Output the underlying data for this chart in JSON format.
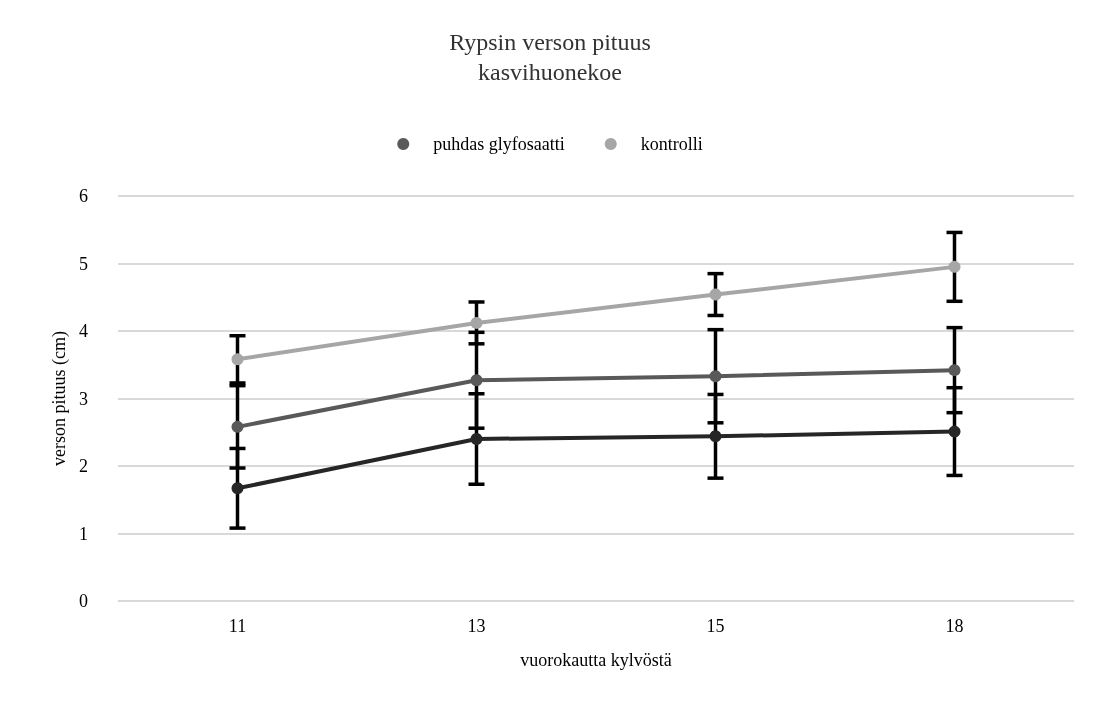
{
  "chart_data": {
    "type": "line",
    "title": "Rypsin verson pituus\nkasvihuonekoe",
    "xlabel": "vuorokautta kylvöstä",
    "ylabel": "verson pituus (cm)",
    "categories": [
      "11",
      "13",
      "15",
      "18"
    ],
    "series": [
      {
        "color": "#262626",
        "values": [
          1.67,
          2.4,
          2.44,
          2.51
        ],
        "errors": [
          0.59,
          0.67,
          0.62,
          0.65
        ]
      },
      {
        "name": "puhdas glyfosaatti",
        "color": "#595959",
        "values": [
          2.58,
          3.27,
          3.33,
          3.42
        ],
        "errors": [
          0.61,
          0.71,
          0.69,
          0.63
        ]
      },
      {
        "name": "kontrolli",
        "color": "#a6a6a6",
        "values": [
          3.58,
          4.12,
          4.54,
          4.95
        ],
        "errors": [
          0.35,
          0.31,
          0.31,
          0.51
        ]
      }
    ],
    "ylim": [
      0,
      6
    ],
    "yticks": [
      0,
      1,
      2,
      3,
      4,
      5,
      6
    ],
    "grid": "y",
    "legend": "top",
    "marker": "circle",
    "line_style": "solid"
  }
}
